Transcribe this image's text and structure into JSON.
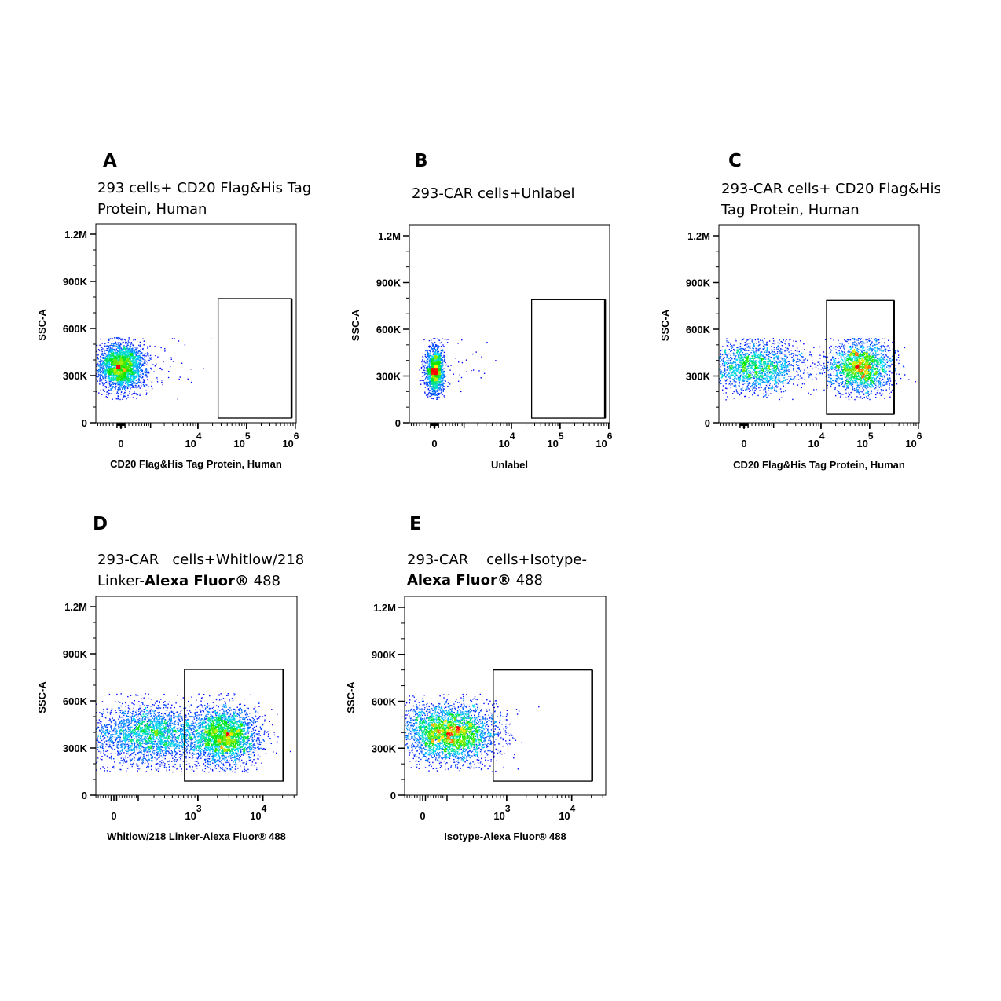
{
  "chart_data": [
    {
      "id": "A",
      "type": "scatter",
      "subtype": "flow-cytometry-density-plot",
      "letter": "A",
      "title_lines": [
        [
          {
            "t": "293 cells+ CD20 Flag&His Tag"
          }
        ],
        [
          {
            "t": "Protein, Human"
          }
        ]
      ],
      "xlabel": "CD20 Flag&His Tag Protein, Human",
      "ylabel": "SSC-A",
      "xscale": "biexponential",
      "xticks": [
        {
          "v": 0,
          "base": "0"
        },
        {
          "v": 10000,
          "base": "10",
          "exp": "4"
        },
        {
          "v": 100000,
          "base": "10",
          "exp": "5"
        },
        {
          "v": 1000000,
          "base": "10",
          "exp": "6"
        }
      ],
      "yticks": [
        {
          "v": 0,
          "label": "0"
        },
        {
          "v": 300000,
          "label": "300K"
        },
        {
          "v": 600000,
          "label": "600K"
        },
        {
          "v": 900000,
          "label": "900K"
        },
        {
          "v": 1200000,
          "label": "1.2M"
        }
      ],
      "ylim": [
        0,
        1200000
      ],
      "gate": {
        "x": [
          26000,
          840000
        ],
        "y": [
          30000,
          790000
        ]
      },
      "populations": [
        {
          "n": 2600,
          "x_center": 0,
          "x_sd_asinh": 0.55,
          "y_center": 360000,
          "y_sd": 75000,
          "y_max": 545000
        },
        {
          "n": 45,
          "x_center": 2000,
          "x_sd_asinh": 1.1,
          "y_center": 380000,
          "y_sd": 90000,
          "y_max": 545000
        }
      ]
    },
    {
      "id": "B",
      "type": "scatter",
      "subtype": "flow-cytometry-density-plot",
      "letter": "B",
      "title_lines": [
        [
          {
            "t": "293-CAR cells+Unlabel"
          }
        ]
      ],
      "xlabel": "Unlabel",
      "ylabel": "SSC-A",
      "xscale": "biexponential",
      "xticks": [
        {
          "v": 0,
          "base": "0"
        },
        {
          "v": 10000,
          "base": "10",
          "exp": "4"
        },
        {
          "v": 100000,
          "base": "10",
          "exp": "5"
        },
        {
          "v": 1000000,
          "base": "10",
          "exp": "6"
        }
      ],
      "yticks": [
        {
          "v": 0,
          "label": "0"
        },
        {
          "v": 300000,
          "label": "300K"
        },
        {
          "v": 600000,
          "label": "600K"
        },
        {
          "v": 900000,
          "label": "900K"
        },
        {
          "v": 1200000,
          "label": "1.2M"
        }
      ],
      "ylim": [
        0,
        1200000
      ],
      "gate": {
        "x": [
          26000,
          840000
        ],
        "y": [
          30000,
          790000
        ]
      },
      "populations": [
        {
          "n": 1500,
          "x_center": 0,
          "x_sd_asinh": 0.22,
          "y_center": 340000,
          "y_sd": 75000,
          "y_max": 545000
        },
        {
          "n": 25,
          "x_center": 600,
          "x_sd_asinh": 0.9,
          "y_center": 380000,
          "y_sd": 80000,
          "y_max": 545000
        }
      ]
    },
    {
      "id": "C",
      "type": "scatter",
      "subtype": "flow-cytometry-density-plot",
      "letter": "C",
      "title_lines": [
        [
          {
            "t": "293-CAR cells+ CD20 Flag&His"
          }
        ],
        [
          {
            "t": "Tag Protein, Human"
          }
        ]
      ],
      "xlabel": "CD20 Flag&His Tag Protein, Human",
      "ylabel": "SSC-A",
      "xscale": "biexponential",
      "xticks": [
        {
          "v": 0,
          "base": "0"
        },
        {
          "v": 10000,
          "base": "10",
          "exp": "4"
        },
        {
          "v": 100000,
          "base": "10",
          "exp": "5"
        },
        {
          "v": 1000000,
          "base": "10",
          "exp": "6"
        }
      ],
      "yticks": [
        {
          "v": 0,
          "label": "0"
        },
        {
          "v": 300000,
          "label": "300K"
        },
        {
          "v": 600000,
          "label": "600K"
        },
        {
          "v": 900000,
          "label": "900K"
        },
        {
          "v": 1200000,
          "label": "1.2M"
        }
      ],
      "ylim": [
        0,
        1200000
      ],
      "gate": {
        "x": [
          13000,
          315000
        ],
        "y": [
          55000,
          785000
        ]
      },
      "populations": [
        {
          "n": 1800,
          "x_center": 260,
          "x_sd_asinh": 1.1,
          "y_center": 360000,
          "y_sd": 80000,
          "y_max": 545000
        },
        {
          "n": 2000,
          "x_center": 64000,
          "x_sd_asinh": 0.75,
          "y_center": 360000,
          "y_sd": 80000,
          "y_max": 545000
        }
      ]
    },
    {
      "id": "D",
      "type": "scatter",
      "subtype": "flow-cytometry-density-plot",
      "letter": "D",
      "title_lines": [
        [
          {
            "t": "293-CAR   cells+Whitlow/218"
          }
        ],
        [
          {
            "t": "Linker-"
          },
          {
            "t": "Alexa Fluor®",
            "b": true
          },
          {
            "t": " 488"
          }
        ]
      ],
      "xlabel": "Whitlow/218 Linker-Alexa Fluor® 488",
      "ylabel": "SSC-A",
      "xscale": "biexponential",
      "xticks": [
        {
          "v": 0,
          "base": "0"
        },
        {
          "v": 1000,
          "base": "10",
          "exp": "3"
        },
        {
          "v": 10000,
          "base": "10",
          "exp": "4"
        }
      ],
      "yticks": [
        {
          "v": 0,
          "label": "0"
        },
        {
          "v": 300000,
          "label": "300K"
        },
        {
          "v": 600000,
          "label": "600K"
        },
        {
          "v": 900000,
          "label": "900K"
        },
        {
          "v": 1200000,
          "label": "1.2M"
        }
      ],
      "ylim": [
        0,
        1200000
      ],
      "gate": {
        "x": [
          620,
          20600
        ],
        "y": [
          90000,
          800000
        ]
      },
      "populations": [
        {
          "n": 2600,
          "x_center": 165,
          "x_sd_asinh": 1.05,
          "y_center": 390000,
          "y_sd": 95000,
          "y_max": 650000
        },
        {
          "n": 2600,
          "x_center": 2500,
          "x_sd_asinh": 0.6,
          "y_center": 380000,
          "y_sd": 90000,
          "y_max": 650000
        }
      ]
    },
    {
      "id": "E",
      "type": "scatter",
      "subtype": "flow-cytometry-density-plot",
      "letter": "E",
      "title_lines": [
        [
          {
            "t": "293-CAR    cells+Isotype-"
          }
        ],
        [
          {
            "t": "Alexa Fluor®",
            "b": true
          },
          {
            "t": " 488"
          }
        ]
      ],
      "xlabel": "Isotype-Alexa Fluor® 488",
      "ylabel": "SSC-A",
      "xscale": "biexponential",
      "xticks": [
        {
          "v": 0,
          "base": "0"
        },
        {
          "v": 1000,
          "base": "10",
          "exp": "3"
        },
        {
          "v": 10000,
          "base": "10",
          "exp": "4"
        }
      ],
      "yticks": [
        {
          "v": 0,
          "label": "0"
        },
        {
          "v": 300000,
          "label": "300K"
        },
        {
          "v": 600000,
          "label": "600K"
        },
        {
          "v": 900000,
          "label": "900K"
        },
        {
          "v": 1200000,
          "label": "1.2M"
        }
      ],
      "ylim": [
        0,
        1200000
      ],
      "gate": {
        "x": [
          620,
          20600
        ],
        "y": [
          90000,
          800000
        ]
      },
      "populations": [
        {
          "n": 3200,
          "x_center": 105,
          "x_sd_asinh": 0.85,
          "y_center": 400000,
          "y_sd": 90000,
          "y_max": 650000
        }
      ]
    }
  ]
}
